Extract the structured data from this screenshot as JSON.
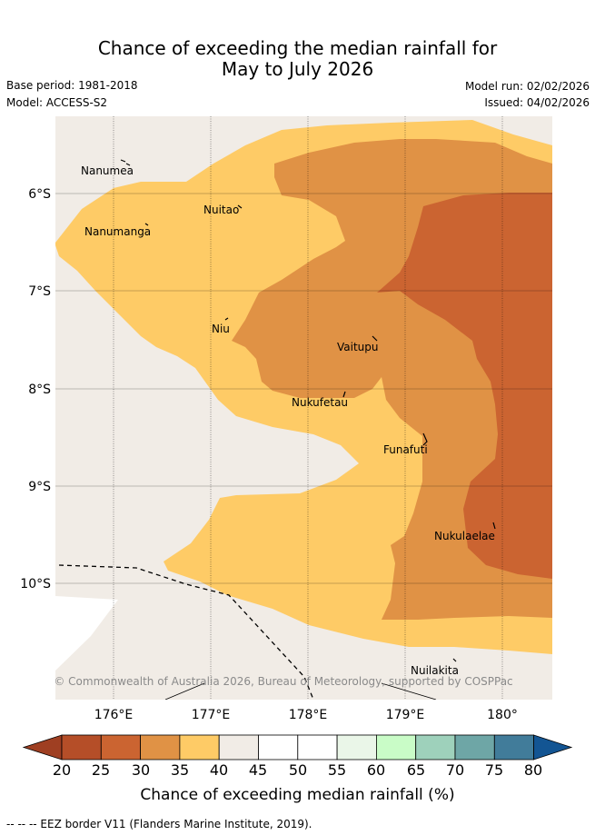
{
  "header": {
    "title_line1": "Chance of exceeding the median rainfall for",
    "title_line2": "May to July 2026",
    "base_period": "Base period: 1981-2018",
    "model": "Model: ACCESS-S2",
    "model_run": "Model run: 02/02/2026",
    "issued": "Issued: 04/02/2026"
  },
  "map": {
    "lat_labels": [
      "6°S",
      "7°S",
      "8°S",
      "9°S",
      "10°S"
    ],
    "lon_labels": [
      "176°E",
      "177°E",
      "178°E",
      "179°E",
      "180°"
    ],
    "places": [
      {
        "name": "Nanumea"
      },
      {
        "name": "Nuitao"
      },
      {
        "name": "Nanumanga"
      },
      {
        "name": "Niu"
      },
      {
        "name": "Vaitupu"
      },
      {
        "name": "Nukufetau"
      },
      {
        "name": "Funafuti"
      },
      {
        "name": "Nukulaelae"
      },
      {
        "name": "Nuilakita"
      }
    ],
    "copyright": "© Commonwealth of Australia 2026, Bureau of Meteorology, supported by COSPPac",
    "colors": {
      "below_20": "#9f3f22",
      "20_25": "#b54e28",
      "25_30": "#cb6431",
      "30_35": "#e09245",
      "35_40": "#fecb66",
      "40_45": "#f1ece6",
      "45_50": "#ffffff",
      "50_55": "#ffffff",
      "55_60": "#eaf6e8",
      "60_65": "#c9fcc7",
      "65_70": "#9ed1bb",
      "70_75": "#6ea6a6",
      "75_80": "#417c9a",
      "above_80": "#135593"
    }
  },
  "colorbar": {
    "ticks": [
      "20",
      "25",
      "30",
      "35",
      "40",
      "45",
      "50",
      "55",
      "60",
      "65",
      "70",
      "75",
      "80"
    ],
    "label": "Chance of exceeding median rainfall (%)"
  },
  "footer": {
    "legend": "-- -- -- EEZ border V11 (Flanders Marine Institute, 2019)."
  }
}
